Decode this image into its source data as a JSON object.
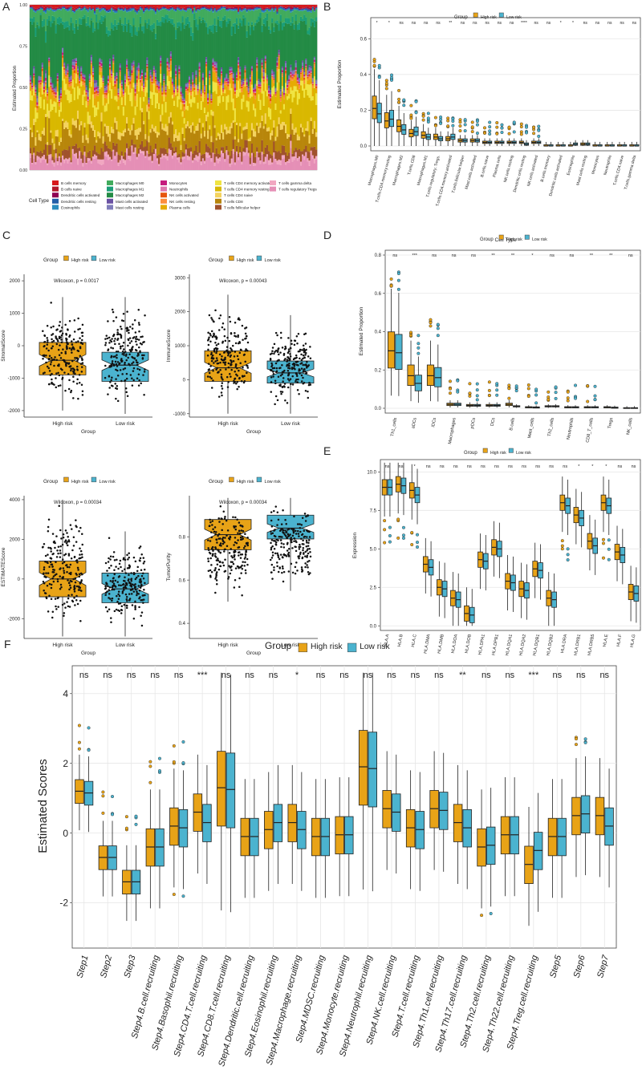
{
  "colors": {
    "high": "#E8A317",
    "low": "#4BB3CF",
    "grid": "#e6e6e6"
  },
  "chart_data": [
    {
      "panel": "A",
      "type": "bar",
      "subtype": "stacked-proportion",
      "ylabel": "Estimated Proportion",
      "yticks": [
        "0.00",
        "0.25",
        "0.50",
        "0.75",
        "1.00"
      ],
      "legend_title": "Cell Type",
      "legend": [
        {
          "label": "B cells memory",
          "color": "#d7191c"
        },
        {
          "label": "B cells naive",
          "color": "#b2182b"
        },
        {
          "label": "Dendritic cells activated",
          "color": "#8e0152"
        },
        {
          "label": "Dendritic cells resting",
          "color": "#225ea8"
        },
        {
          "label": "Eosinophils",
          "color": "#2b8cbe"
        },
        {
          "label": "Macrophages M0",
          "color": "#41ab5d"
        },
        {
          "label": "Macrophages M1",
          "color": "#1b9e77"
        },
        {
          "label": "Macrophages M2",
          "color": "#238b45"
        },
        {
          "label": "Mast cells activated",
          "color": "#6a51a3"
        },
        {
          "label": "Mast cells resting",
          "color": "#807dba"
        },
        {
          "label": "Monocytes",
          "color": "#c51b7d"
        },
        {
          "label": "Neutrophils",
          "color": "#de77ae"
        },
        {
          "label": "NK cells activated",
          "color": "#e6550d"
        },
        {
          "label": "NK cells resting",
          "color": "#fd8d3c"
        },
        {
          "label": "Plasma cells",
          "color": "#e6ab02"
        },
        {
          "label": "T cells CD4 memory activated",
          "color": "#f0e442"
        },
        {
          "label": "T cells CD4 memory resting",
          "color": "#d9b800"
        },
        {
          "label": "T cells CD4 naive",
          "color": "#f4d35e"
        },
        {
          "label": "T cells CD8",
          "color": "#b8860b"
        },
        {
          "label": "T cells follicular helper",
          "color": "#a0522d"
        },
        {
          "label": "T cells gamma delta",
          "color": "#f1a7c1"
        },
        {
          "label": "T cells regulatory Tregs",
          "color": "#e58fb6"
        }
      ]
    },
    {
      "panel": "B",
      "type": "boxplot",
      "ylabel": "Estimated Proportion",
      "xlabel": "Cell Type",
      "ylim": [
        0,
        0.7
      ],
      "yticks": [
        0.0,
        0.2,
        0.4,
        0.6
      ],
      "legend_title": "Group",
      "legend": [
        "High risk",
        "Low risk"
      ],
      "categories": [
        "Macrophages.M0",
        "T.cells.CD4.memory.resting",
        "Macrophages.M2",
        "T.cells.CD8",
        "Macrophages.M1",
        "T.cells.regulatory..Tregs.",
        "T.cells.CD4.memory.activated",
        "T.cells.follicular.helper",
        "Mast.cells.activated",
        "B.cells.naive",
        "Plasma.cells",
        "NK.cells.resting",
        "Dendritic.cells.resting",
        "NK.cells.activated",
        "B.cells.memory",
        "Dendritic.cells.activated",
        "Eosinophils",
        "Mast.cells.resting",
        "Monocytes",
        "Neutrophils",
        "T.cells.CD4.naive",
        "T.cells.gamma.delta"
      ],
      "significance": [
        "*",
        "*",
        "ns",
        "ns",
        "ns",
        "ns",
        "**",
        "ns",
        "ns",
        "ns",
        "ns",
        "ns",
        "****",
        "ns",
        "ns",
        "*",
        "*",
        "ns",
        "ns",
        "ns",
        "ns",
        "ns"
      ],
      "series": [
        {
          "name": "High risk",
          "medians": [
            0.21,
            0.14,
            0.11,
            0.07,
            0.06,
            0.05,
            0.04,
            0.03,
            0.03,
            0.02,
            0.02,
            0.02,
            0.02,
            0.02,
            0.0,
            0.0,
            0.0,
            0.01,
            0.0,
            0.0,
            0.0,
            0.0
          ]
        },
        {
          "name": "Low risk",
          "medians": [
            0.18,
            0.15,
            0.09,
            0.08,
            0.05,
            0.04,
            0.05,
            0.03,
            0.03,
            0.02,
            0.02,
            0.02,
            0.01,
            0.02,
            0.0,
            0.0,
            0.01,
            0.01,
            0.0,
            0.0,
            0.0,
            0.0
          ]
        }
      ]
    },
    {
      "panel": "C1",
      "type": "boxplot",
      "ylabel": "StromalScore",
      "xlabel": "Group",
      "annotation": "Wilcoxon, p = 0.0017",
      "legend_title": "Group",
      "categories": [
        "High risk",
        "Low risk"
      ],
      "ylim": [
        -2200,
        2200
      ],
      "yticks": [
        -2000,
        -1000,
        0,
        1000,
        2000
      ],
      "stats": [
        {
          "q1": -900,
          "med": -450,
          "q3": 100,
          "lo": -2000,
          "hi": 1500
        },
        {
          "q1": -1100,
          "med": -600,
          "q3": -200,
          "lo": -2100,
          "hi": 1500
        }
      ]
    },
    {
      "panel": "C2",
      "type": "boxplot",
      "ylabel": "ImmuneScore",
      "xlabel": "Group",
      "annotation": "Wilcoxon, p = 0.00043",
      "legend_title": "Group",
      "categories": [
        "High risk",
        "Low risk"
      ],
      "ylim": [
        -1100,
        3100
      ],
      "yticks": [
        -1000,
        0,
        1000,
        2000,
        3000
      ],
      "stats": [
        {
          "q1": -50,
          "med": 350,
          "q3": 850,
          "lo": -1000,
          "hi": 2500
        },
        {
          "q1": -100,
          "med": 200,
          "q3": 550,
          "lo": -1000,
          "hi": 1900
        }
      ]
    },
    {
      "panel": "C3",
      "type": "boxplot",
      "ylabel": "ESTIMATEScore",
      "xlabel": "Group",
      "annotation": "Wilcoxon, p = 0.00034",
      "legend_title": "Group",
      "categories": [
        "High risk",
        "Low risk"
      ],
      "ylim": [
        -3000,
        4200
      ],
      "yticks": [
        -2000,
        0,
        2000,
        4000
      ],
      "stats": [
        {
          "q1": -900,
          "med": 0,
          "q3": 900,
          "lo": -2900,
          "hi": 4000
        },
        {
          "q1": -1200,
          "med": -500,
          "q3": 300,
          "lo": -2900,
          "hi": 2400
        }
      ]
    },
    {
      "panel": "C4",
      "type": "boxplot",
      "ylabel": "TumorPurity",
      "xlabel": "Group",
      "annotation": "Wilcoxon, p = 0.00034",
      "legend_title": "Group",
      "categories": [
        "High risk",
        "Low risk"
      ],
      "ylim": [
        0.33,
        0.99
      ],
      "yticks": [
        0.4,
        0.6,
        0.8
      ],
      "stats": [
        {
          "q1": 0.74,
          "med": 0.81,
          "q3": 0.88,
          "lo": 0.5,
          "hi": 0.98
        },
        {
          "q1": 0.79,
          "med": 0.84,
          "q3": 0.9,
          "lo": 0.55,
          "hi": 0.98
        }
      ]
    },
    {
      "panel": "D",
      "type": "boxplot",
      "ylabel": "Estimated Proportion",
      "legend_title": "Group",
      "legend": [
        "High risk",
        "Low risk"
      ],
      "ylim": [
        0,
        0.8
      ],
      "yticks": [
        0.0,
        0.2,
        0.4,
        0.6,
        0.8
      ],
      "categories": [
        "Th1_cells",
        "aDCs",
        "iDCs",
        "Macrophages",
        "pDCs",
        "DCs",
        "B.cells",
        "Mast_cells",
        "Th2_cells",
        "Neutrophils",
        "CD8_T_cells",
        "Tregs",
        "NK_cells"
      ],
      "significance": [
        "ns",
        "***",
        "ns",
        "ns",
        "ns",
        "**",
        "**",
        "*",
        "ns",
        "ns",
        "**",
        "**",
        "ns"
      ],
      "series": [
        {
          "name": "High risk",
          "medians": [
            0.3,
            0.17,
            0.17,
            0.02,
            0.015,
            0.015,
            0.02,
            0.005,
            0.01,
            0.005,
            0.005,
            0.005,
            0.0
          ]
        },
        {
          "name": "Low risk",
          "medians": [
            0.29,
            0.13,
            0.16,
            0.02,
            0.015,
            0.015,
            0.01,
            0.004,
            0.01,
            0.005,
            0.005,
            0.003,
            0.0
          ]
        }
      ]
    },
    {
      "panel": "E",
      "type": "boxplot",
      "ylabel": "Expression",
      "legend_title": "Group",
      "legend": [
        "High risk",
        "Low risk"
      ],
      "ylim": [
        -0.3,
        10.8
      ],
      "yticks": [
        0.0,
        2.5,
        5.0,
        7.5,
        10.0
      ],
      "categories": [
        "HLA.A",
        "HLA.B",
        "HLA.C",
        "HLA.DMA",
        "HLA.DMB",
        "HLA.DOA",
        "HLA.DOB",
        "HLA.DPA1",
        "HLA.DPB1",
        "HLA.DQA1",
        "HLA.DQA2",
        "HLA.DQB1",
        "HLA.DQB2",
        "HLA.DRA",
        "HLA.DRB1",
        "HLA.DRB5",
        "HLA.E",
        "HLA.F",
        "HLA.G"
      ],
      "significance": [
        "ns",
        "ns",
        "*",
        "ns",
        "ns",
        "ns",
        "ns",
        "ns",
        "ns",
        "ns",
        "ns",
        "ns",
        "ns",
        "ns",
        "*",
        "*",
        "*",
        "ns",
        "ns"
      ],
      "series": [
        {
          "name": "High risk",
          "medians": [
            9.0,
            9.2,
            8.8,
            4.0,
            2.5,
            1.8,
            0.8,
            4.3,
            5.1,
            2.9,
            2.4,
            3.7,
            1.8,
            8.0,
            7.2,
            5.5,
            8.0,
            4.8,
            2.2
          ]
        },
        {
          "name": "Low risk",
          "medians": [
            9.0,
            9.1,
            8.5,
            3.8,
            2.4,
            1.7,
            0.7,
            4.2,
            5.0,
            2.8,
            2.3,
            3.6,
            1.7,
            7.8,
            7.0,
            5.2,
            7.8,
            4.6,
            2.1
          ]
        }
      ]
    },
    {
      "panel": "F",
      "type": "boxplot",
      "ylabel": "Estimated Scores",
      "legend_title": "Group",
      "legend": [
        "High risk",
        "Low risk"
      ],
      "ylim": [
        -3.3,
        4.8
      ],
      "yticks": [
        -2,
        0,
        2,
        4
      ],
      "categories": [
        "Step1",
        "Step2",
        "Step3",
        "Step4.B.cell.recruiting",
        "Step4.Basophil.recruiting",
        "Step4.CD4.T.cell.recruiting",
        "Step4.CD8.T.cell.recruiting",
        "Step4.Dendritic.cell.recruiting",
        "Step4.Eosinophil.recruiting",
        "Step4.Macrophage.recruiting",
        "Step4.MDSC.recruiting",
        "Step4.Monocyte.recruiting",
        "Step4.Neutrophil.recruiting",
        "Step4.NK.cell.recruiting",
        "Step4.T.cell.recruiting",
        "Step4.Th1.cell.recruiting",
        "Step4.Th17.cell.recruiting",
        "Step4.Th2.cell.recruiting",
        "Step4.Th22.cell.recruiting",
        "Step4.Treg.cell.recruiting",
        "Step5",
        "Step6",
        "Step7"
      ],
      "significance": [
        "ns",
        "ns",
        "ns",
        "ns",
        "ns",
        "***",
        "ns",
        "ns",
        "ns",
        "*",
        "ns",
        "ns",
        "ns",
        "ns",
        "ns",
        "ns",
        "**",
        "ns",
        "ns",
        "***",
        "ns",
        "ns",
        "ns"
      ],
      "series": [
        {
          "name": "High risk",
          "medians": [
            1.2,
            -0.7,
            -1.4,
            -0.4,
            0.2,
            0.6,
            1.3,
            -0.1,
            0.1,
            0.3,
            -0.1,
            -0.05,
            1.9,
            0.7,
            0.15,
            0.7,
            0.3,
            -0.4,
            -0.05,
            -0.9,
            -0.1,
            0.5,
            0.5
          ]
        },
        {
          "name": "Low risk",
          "medians": [
            1.15,
            -0.7,
            -1.4,
            -0.4,
            0.15,
            0.3,
            1.25,
            -0.1,
            0.3,
            0.1,
            -0.1,
            -0.05,
            1.85,
            0.6,
            0.1,
            0.65,
            0.15,
            -0.35,
            -0.05,
            -0.5,
            -0.1,
            0.55,
            0.2
          ]
        }
      ]
    }
  ]
}
